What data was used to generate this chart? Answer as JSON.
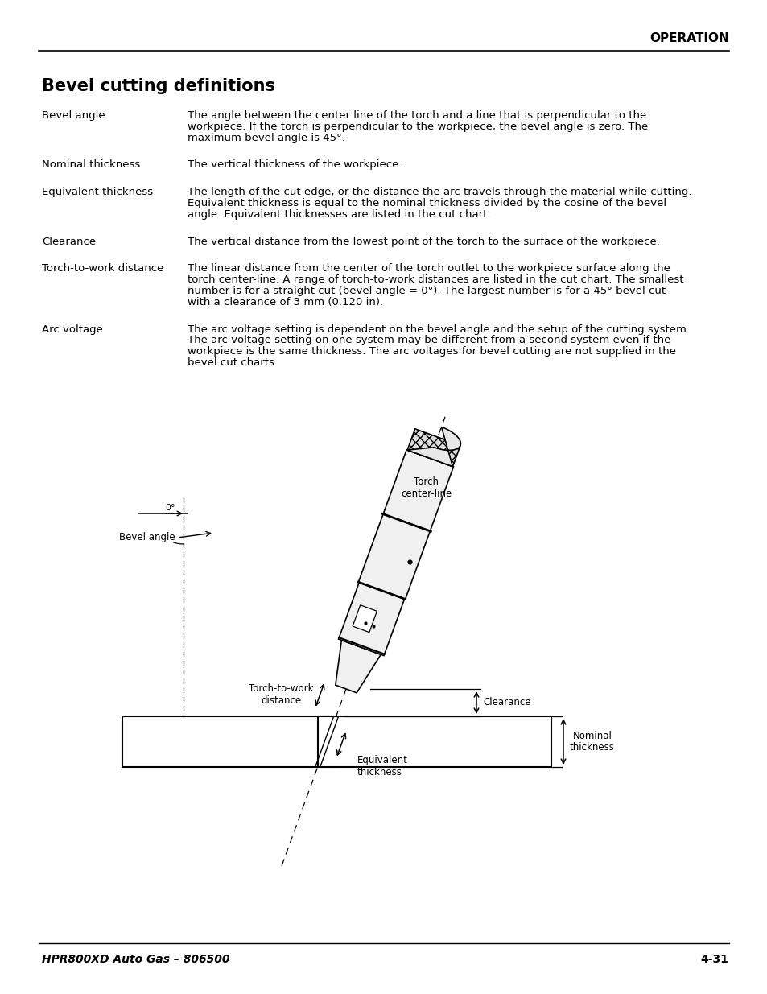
{
  "page_header": "OPERATION",
  "title": "Bevel cutting definitions",
  "footer_left": "HPR800XD Auto Gas – 806500",
  "footer_right": "4-31",
  "bg_color": "#ffffff",
  "text_color": "#000000",
  "definitions": [
    {
      "term": "Bevel angle",
      "definition": "The angle between the center line of the torch and a line that is perpendicular to the\nworkpiece. If the torch is perpendicular to the workpiece, the bevel angle is zero. The\nmaximum bevel angle is 45°."
    },
    {
      "term": "Nominal thickness",
      "definition": "The vertical thickness of the workpiece."
    },
    {
      "term": "Equivalent thickness",
      "definition": "The length of the cut edge, or the distance the arc travels through the material while cutting.\nEquivalent thickness is equal to the nominal thickness divided by the cosine of the bevel\nangle. Equivalent thicknesses are listed in the cut chart."
    },
    {
      "term": "Clearance",
      "definition": "The vertical distance from the lowest point of the torch to the surface of the workpiece."
    },
    {
      "term": "Torch-to-work distance",
      "definition": "The linear distance from the center of the torch outlet to the workpiece surface along the\ntorch center-line. A range of torch-to-work distances are listed in the cut chart. The smallest\nnumber is for a straight cut (bevel angle = 0°). The largest number is for a 45° bevel cut\nwith a clearance of 3 mm (0.120 in)."
    },
    {
      "term": "Arc voltage",
      "definition": "The arc voltage setting is dependent on the bevel angle and the setup of the cutting system.\nThe arc voltage setting on one system may be different from a second system even if the\nworkpiece is the same thickness. The arc voltages for bevel cutting are not supplied in the\nbevel cut charts."
    }
  ],
  "diagram": {
    "torch_label": "Torch\ncenter-line",
    "zero_label": "0°",
    "bevel_angle_label": "Bevel angle",
    "torch_to_work_label": "Torch-to-work\ndistance",
    "clearance_label": "Clearance",
    "nominal_thickness_label": "Nominal\nthickness",
    "equivalent_thickness_label": "Equivalent\nthickness"
  }
}
